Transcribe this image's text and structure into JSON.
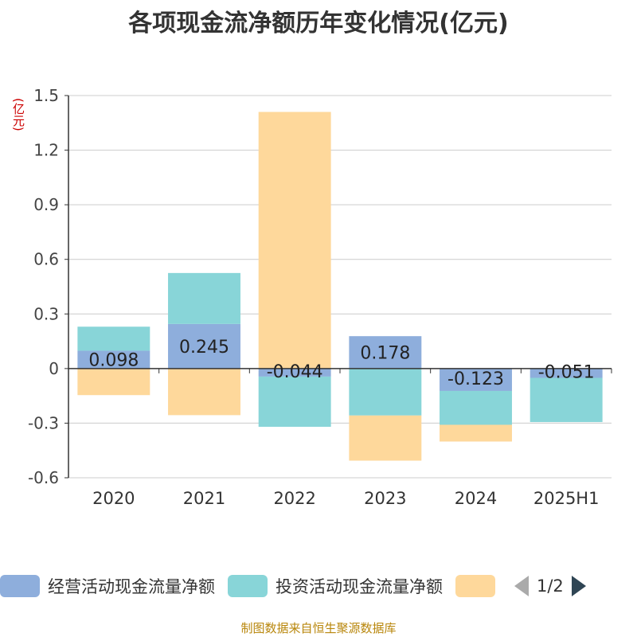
{
  "chart_data": {
    "type": "bar",
    "stacked": true,
    "title": "各项现金流净额历年变化情况(亿元)",
    "y_unit_label": "(亿元)",
    "categories": [
      "2020",
      "2021",
      "2022",
      "2023",
      "2024",
      "2025H1"
    ],
    "ylim": [
      -0.6,
      1.5
    ],
    "y_ticks": [
      "1.5",
      "1.2",
      "0.9",
      "0.6",
      "0.3",
      "0",
      "-0.3",
      "-0.6"
    ],
    "y_tick_values": [
      1.5,
      1.2,
      0.9,
      0.6,
      0.3,
      0,
      -0.3,
      -0.6
    ],
    "grid": true,
    "legend_position": "bottom",
    "series": [
      {
        "name": "经营活动现金流量净额",
        "color": "#8eaedc",
        "values": [
          0.098,
          0.245,
          -0.044,
          0.178,
          -0.123,
          -0.051
        ],
        "data_labels": [
          "0.098",
          "0.245",
          "-0.044",
          "0.178",
          "-0.123",
          "-0.051"
        ]
      },
      {
        "name": "投资活动现金流量净额",
        "color": "#88d5d8",
        "values": [
          0.132,
          0.28,
          -0.276,
          -0.258,
          -0.186,
          -0.243
        ]
      },
      {
        "name": "",
        "color": "#fed89b",
        "values": [
          -0.146,
          -0.256,
          1.41,
          -0.248,
          -0.092,
          0
        ]
      }
    ]
  },
  "legend": {
    "pager_text": "1/2"
  },
  "source_note": "制图数据来自恒生聚源数据库"
}
